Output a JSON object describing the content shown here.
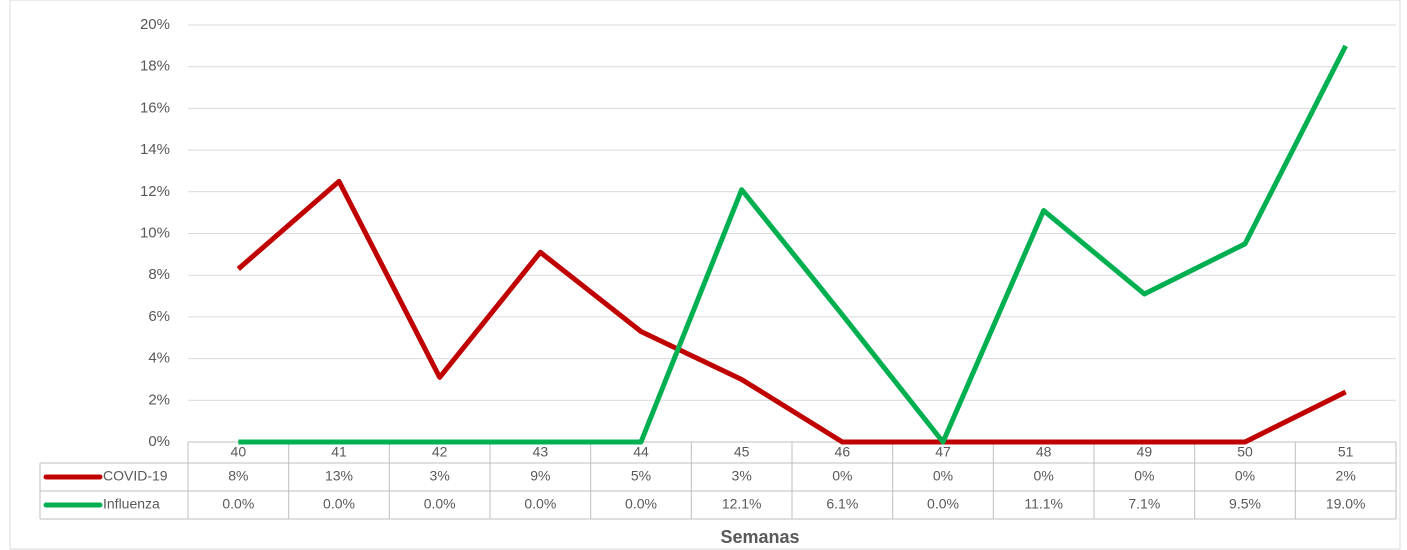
{
  "chart_data": {
    "type": "line",
    "x_label": "Semanas",
    "categories": [
      "40",
      "41",
      "42",
      "43",
      "44",
      "45",
      "46",
      "47",
      "48",
      "49",
      "50",
      "51"
    ],
    "series": [
      {
        "name": "COVID-19",
        "color": "#c00000",
        "values": [
          8.3,
          12.5,
          3.1,
          9.1,
          5.3,
          3.0,
          0,
          0,
          0,
          0,
          0,
          2.4
        ],
        "value_labels": [
          "8%",
          "13%",
          "3%",
          "9%",
          "5%",
          "3%",
          "0%",
          "0%",
          "0%",
          "0%",
          "0%",
          "2%"
        ]
      },
      {
        "name": "Influenza",
        "color": "#00b050",
        "values": [
          0,
          0,
          0,
          0,
          0,
          12.1,
          6.1,
          0,
          11.1,
          7.1,
          9.5,
          19.0
        ],
        "value_labels": [
          "0.0%",
          "0.0%",
          "0.0%",
          "0.0%",
          "0.0%",
          "12.1%",
          "6.1%",
          "0.0%",
          "11.1%",
          "7.1%",
          "9.5%",
          "19.0%"
        ]
      }
    ],
    "ylim": [
      0,
      20
    ],
    "yticks": [
      {
        "value": 0,
        "label": "0%"
      },
      {
        "value": 2,
        "label": "2%"
      },
      {
        "value": 4,
        "label": "4%"
      },
      {
        "value": 6,
        "label": "6%"
      },
      {
        "value": 8,
        "label": "8%"
      },
      {
        "value": 10,
        "label": "10%"
      },
      {
        "value": 12,
        "label": "12%"
      },
      {
        "value": 14,
        "label": "14%"
      },
      {
        "value": 16,
        "label": "16%"
      },
      {
        "value": 18,
        "label": "18%"
      },
      {
        "value": 20,
        "label": "20%"
      }
    ],
    "grid": true
  }
}
